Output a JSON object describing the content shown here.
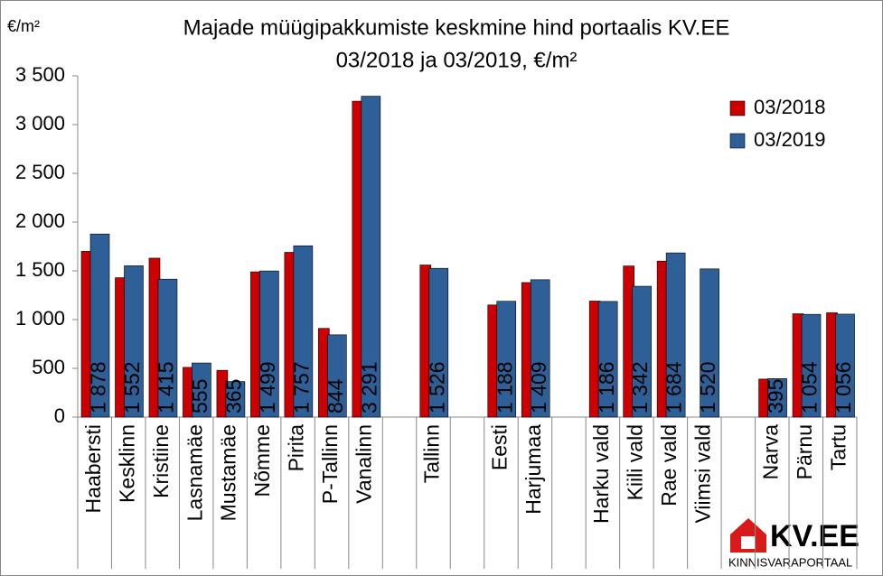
{
  "chart_data": {
    "type": "bar",
    "title": "Majade müügipakkumiste keskmine hind portaalis KV.EE",
    "subtitle": "03/2018 ja 03/2019, €/m²",
    "y_axis_label": "€/m²",
    "categories": [
      "Haabersti",
      "Kesklinn",
      "Kristiine",
      "Lasnamäe",
      "Mustamäe",
      "Nõmme",
      "Pirita",
      "P-Tallinn",
      "Vanalinn",
      null,
      "Tallinn",
      null,
      "Eesti",
      "Harjumaa",
      null,
      "Harku vald",
      "Kiili vald",
      "Rae vald",
      "Viimsi vald",
      null,
      "Narva",
      "Pärnu",
      "Tartu"
    ],
    "series": [
      {
        "name": "03/2018",
        "color": "#cc0000",
        "values": [
          1700,
          1430,
          1630,
          510,
          480,
          1490,
          1690,
          910,
          3240,
          null,
          1560,
          null,
          1150,
          1380,
          null,
          1190,
          1550,
          1600,
          null,
          null,
          390,
          1060,
          1070
        ]
      },
      {
        "name": "03/2019",
        "color": "#2e5f96",
        "values": [
          1878,
          1552,
          1415,
          555,
          365,
          1499,
          1757,
          844,
          3291,
          null,
          1526,
          null,
          1188,
          1409,
          null,
          1186,
          1342,
          1684,
          1520,
          null,
          395,
          1054,
          1056
        ],
        "value_labels": [
          "1 878",
          "1 552",
          "1 415",
          "555",
          "365",
          "1 499",
          "1 757",
          "844",
          "3 291",
          null,
          "1 526",
          null,
          "1 188",
          "1 409",
          null,
          "1 186",
          "1 342",
          "1 684",
          "1 520",
          null,
          "395",
          "1 054",
          "1 056"
        ]
      }
    ],
    "ylim": [
      0,
      3500
    ],
    "yticks": [
      0,
      500,
      {
        "value": 1000,
        "label": "1 000"
      },
      {
        "value": 1500,
        "label": "1 500"
      },
      {
        "value": 2000,
        "label": "2 000"
      },
      {
        "value": 2500,
        "label": "2 500"
      },
      {
        "value": 3000,
        "label": "3 000"
      },
      {
        "value": 3500,
        "label": "3 500"
      }
    ],
    "legend": "top-right",
    "grid": false
  },
  "logo": {
    "name": "KV.EE",
    "tagline": "KINNISVARAPORTAAL"
  }
}
